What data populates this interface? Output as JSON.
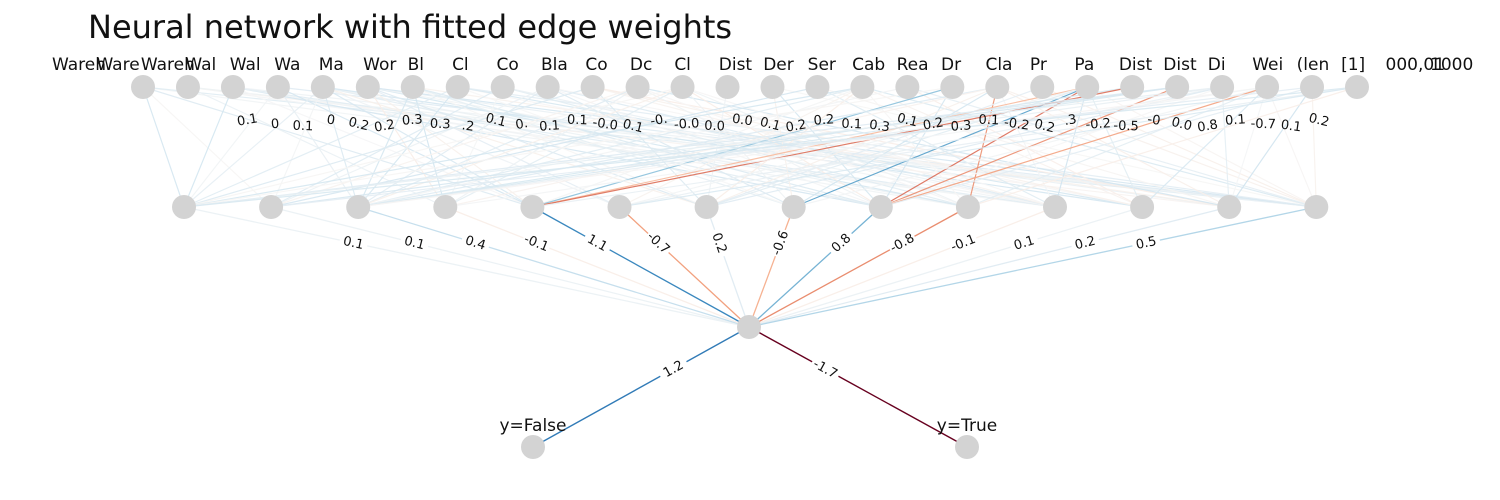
{
  "title": "Neural network with fitted edge weights",
  "colors": {
    "node": "#d3d3d3",
    "positive_strong": "#08306b",
    "negative_strong": "#67001f",
    "palette": "RdBu"
  },
  "layers": [
    {
      "name": "input",
      "count": 28
    },
    {
      "name": "hidden",
      "count": 14
    },
    {
      "name": "aggregate",
      "count": 1
    },
    {
      "name": "output",
      "count": 2
    }
  ],
  "input_labels_visible": [
    "Wareh",
    "Ware",
    "Wareh",
    "Wal",
    "Wal",
    "Wa",
    "Ma",
    "Wor",
    "Bl",
    "Cl",
    "Co",
    "Bla",
    "Co",
    "Dc",
    "Cl",
    "Dist",
    "Der",
    "Ser",
    "Cab",
    "Rea",
    "Dr",
    "Cla",
    "Pr",
    "Pa",
    "Dist",
    "Dist",
    "Di",
    "Wei",
    "(len",
    "[1]",
    "000,01",
    "1000"
  ],
  "output_labels": [
    "y=False",
    "y=True"
  ],
  "edges_input_hidden_labels": [
    "0.1",
    "0",
    "0.1",
    "0",
    "0.2",
    "0.2",
    "0.3",
    "0.3",
    ".2",
    "0.1",
    "0.",
    "0.1",
    "0.1",
    "-0.0",
    "0.1",
    "-0.",
    "-0.0",
    "0.0",
    "0.0",
    "0.1",
    "0.2",
    "0.2",
    "0.1",
    "0.3",
    "0.1",
    "0.2",
    "0.3",
    "0.1",
    "-0.2",
    "0.2",
    ".3",
    "-0.2",
    "-0.5",
    "-0",
    "0.0",
    "0.8",
    "0.1",
    "-0.7",
    "0.1",
    "0.2"
  ],
  "edges_hidden_aggregate": [
    {
      "hidden": 0,
      "weight": 0.1,
      "label": "0.1"
    },
    {
      "hidden": 1,
      "weight": 0.1,
      "label": "0.1"
    },
    {
      "hidden": 2,
      "weight": 0.4,
      "label": "0.4"
    },
    {
      "hidden": 3,
      "weight": -0.1,
      "label": "-0.1"
    },
    {
      "hidden": 4,
      "weight": 1.1,
      "label": "1.1"
    },
    {
      "hidden": 5,
      "weight": -0.7,
      "label": "-0.7"
    },
    {
      "hidden": 6,
      "weight": 0.2,
      "label": "0.2"
    },
    {
      "hidden": 7,
      "weight": -0.6,
      "label": "-0.6"
    },
    {
      "hidden": 8,
      "weight": 0.8,
      "label": "0.8"
    },
    {
      "hidden": 9,
      "weight": -0.8,
      "label": "-0.8"
    },
    {
      "hidden": 10,
      "weight": -0.1,
      "label": "-0.1"
    },
    {
      "hidden": 11,
      "weight": 0.1,
      "label": "0.1"
    },
    {
      "hidden": 12,
      "weight": 0.2,
      "label": "0.2"
    },
    {
      "hidden": 13,
      "weight": 0.5,
      "label": "0.5"
    }
  ],
  "edges_aggregate_output": [
    {
      "output": 0,
      "weight": 1.2,
      "label": "1.2"
    },
    {
      "output": 1,
      "weight": -1.7,
      "label": "-1.7"
    }
  ]
}
